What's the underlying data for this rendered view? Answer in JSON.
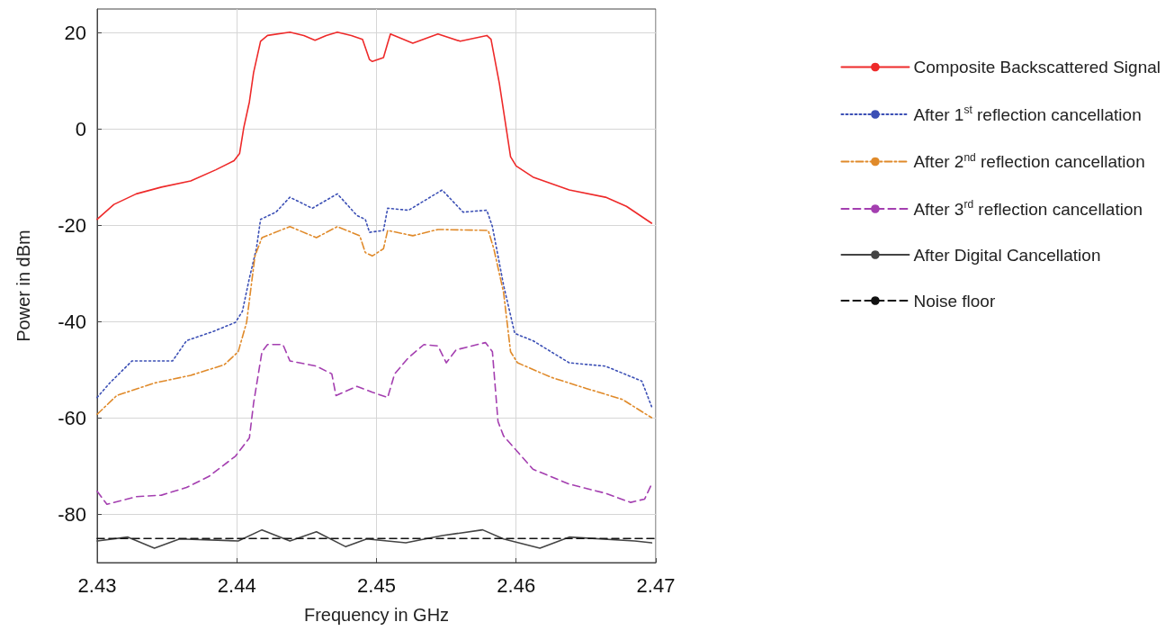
{
  "chart_data": {
    "type": "line",
    "xlabel": "Frequency in GHz",
    "ylabel": "Power in dBm",
    "xlim": [
      2.43,
      2.47
    ],
    "ylim": [
      -90,
      25
    ],
    "xticks": [
      2.43,
      2.44,
      2.45,
      2.46,
      2.47
    ],
    "yticks": [
      -80,
      -60,
      -40,
      -20,
      0,
      20
    ],
    "grid": true,
    "legend": "right",
    "marker": "none",
    "series": [
      {
        "name": "Composite Backscattered Signal",
        "color": "#ee2a2a",
        "line_style": "solid",
        "x": [
          2.43,
          2.4312,
          2.4328,
          2.4346,
          2.4367,
          2.4385,
          2.4398,
          2.4402,
          2.4405,
          2.4409,
          2.4412,
          2.4417,
          2.4422,
          2.4438,
          2.4448,
          2.4456,
          2.4464,
          2.4472,
          2.4482,
          2.449,
          2.4495,
          2.4497,
          2.4505,
          2.4508,
          2.451,
          2.4526,
          2.4544,
          2.456,
          2.4579,
          2.4582,
          2.4588,
          2.4596,
          2.46,
          2.4612,
          2.4638,
          2.4664,
          2.4679,
          2.4697
        ],
        "values": [
          -18.7,
          -15.6,
          -13.4,
          -12.0,
          -10.7,
          -8.4,
          -6.5,
          -5.0,
          0.4,
          5.7,
          11.8,
          18.3,
          19.5,
          20.2,
          19.5,
          18.5,
          19.5,
          20.2,
          19.5,
          18.7,
          14.5,
          14.1,
          14.9,
          17.9,
          19.8,
          17.9,
          19.8,
          18.3,
          19.5,
          18.7,
          9.5,
          -5.7,
          -7.6,
          -9.9,
          -12.6,
          -14.1,
          -16.0,
          -19.5
        ]
      },
      {
        "name": "After 1$^{st}$ reflection cancellation",
        "color": "#3b4fb5",
        "line_style": "dotted",
        "x": [
          2.43,
          2.4309,
          2.4325,
          2.4354,
          2.4364,
          2.4383,
          2.4399,
          2.4404,
          2.4409,
          2.4414,
          2.4417,
          2.4428,
          2.4438,
          2.4454,
          2.4472,
          2.4486,
          2.4492,
          2.4495,
          2.4505,
          2.4508,
          2.4523,
          2.4547,
          2.4562,
          2.4579,
          2.4583,
          2.4591,
          2.4599,
          2.4612,
          2.4638,
          2.4664,
          2.469,
          2.4697
        ],
        "values": [
          -55.7,
          -52.7,
          -48.1,
          -48.1,
          -43.9,
          -42.0,
          -40.1,
          -37.8,
          -30.9,
          -24.8,
          -18.7,
          -17.2,
          -14.1,
          -16.4,
          -13.4,
          -17.9,
          -18.7,
          -21.4,
          -21.0,
          -16.4,
          -16.8,
          -12.6,
          -17.2,
          -16.8,
          -20.2,
          -32.4,
          -42.4,
          -43.9,
          -48.5,
          -49.2,
          -52.3,
          -57.6
        ]
      },
      {
        "name": "After 2$^{nd}$ reflection cancellation",
        "color": "#e08a2a",
        "line_style": "dashdot",
        "x": [
          2.43,
          2.4314,
          2.4341,
          2.4367,
          2.4391,
          2.4401,
          2.4407,
          2.4413,
          2.4418,
          2.4438,
          2.4457,
          2.4472,
          2.4488,
          2.4492,
          2.4497,
          2.4505,
          2.4508,
          2.4526,
          2.4544,
          2.458,
          2.4584,
          2.4591,
          2.4596,
          2.4601,
          2.4625,
          2.465,
          2.4676,
          2.4697
        ],
        "values": [
          -59.2,
          -55.3,
          -52.7,
          -51.1,
          -48.9,
          -46.2,
          -40.1,
          -26.3,
          -22.5,
          -20.2,
          -22.5,
          -20.2,
          -22.1,
          -25.6,
          -26.3,
          -24.8,
          -21.0,
          -22.1,
          -20.8,
          -21.0,
          -24.8,
          -33.9,
          -46.2,
          -48.5,
          -51.5,
          -53.8,
          -56.1,
          -59.9
        ]
      },
      {
        "name": "After 3$^{rd}$ reflection cancellation",
        "color": "#a43fb0",
        "line_style": "dashed",
        "x": [
          2.43,
          2.4307,
          2.4328,
          2.4346,
          2.4364,
          2.438,
          2.4399,
          2.4409,
          2.4412,
          2.4418,
          2.4422,
          2.4433,
          2.4438,
          2.4457,
          2.4468,
          2.4471,
          2.4486,
          2.4497,
          2.4508,
          2.4513,
          2.4523,
          2.4534,
          2.4544,
          2.455,
          2.4557,
          2.4578,
          2.4583,
          2.4587,
          2.4591,
          2.4612,
          2.4638,
          2.4664,
          2.4682,
          2.4692,
          2.4697
        ],
        "values": [
          -75.2,
          -77.9,
          -76.3,
          -76.0,
          -74.4,
          -72.1,
          -67.9,
          -64.1,
          -56.9,
          -46.2,
          -44.7,
          -44.7,
          -48.1,
          -49.2,
          -50.8,
          -55.3,
          -53.4,
          -54.6,
          -55.7,
          -50.8,
          -47.4,
          -44.7,
          -45.0,
          -48.5,
          -45.8,
          -44.3,
          -46.2,
          -60.7,
          -63.7,
          -70.6,
          -73.7,
          -75.6,
          -77.5,
          -76.8,
          -73.7
        ]
      },
      {
        "name": "After Digital Cancellation",
        "color": "#444444",
        "line_style": "solid",
        "x": [
          2.43,
          2.4322,
          2.4341,
          2.4359,
          2.4401,
          2.4418,
          2.4438,
          2.4457,
          2.4478,
          2.4493,
          2.4521,
          2.4547,
          2.4576,
          2.4591,
          2.4617,
          2.4638,
          2.4685,
          2.4697
        ],
        "values": [
          -85.5,
          -84.7,
          -87.0,
          -85.1,
          -85.5,
          -83.2,
          -85.5,
          -83.6,
          -86.7,
          -85.1,
          -85.9,
          -84.4,
          -83.2,
          -85.1,
          -87.0,
          -84.7,
          -85.5,
          -85.9
        ]
      },
      {
        "name": "Noise floor",
        "color": "#111111",
        "line_style": "dashed",
        "x": [
          2.43,
          2.47
        ],
        "values": [
          -85,
          -85
        ]
      }
    ]
  }
}
